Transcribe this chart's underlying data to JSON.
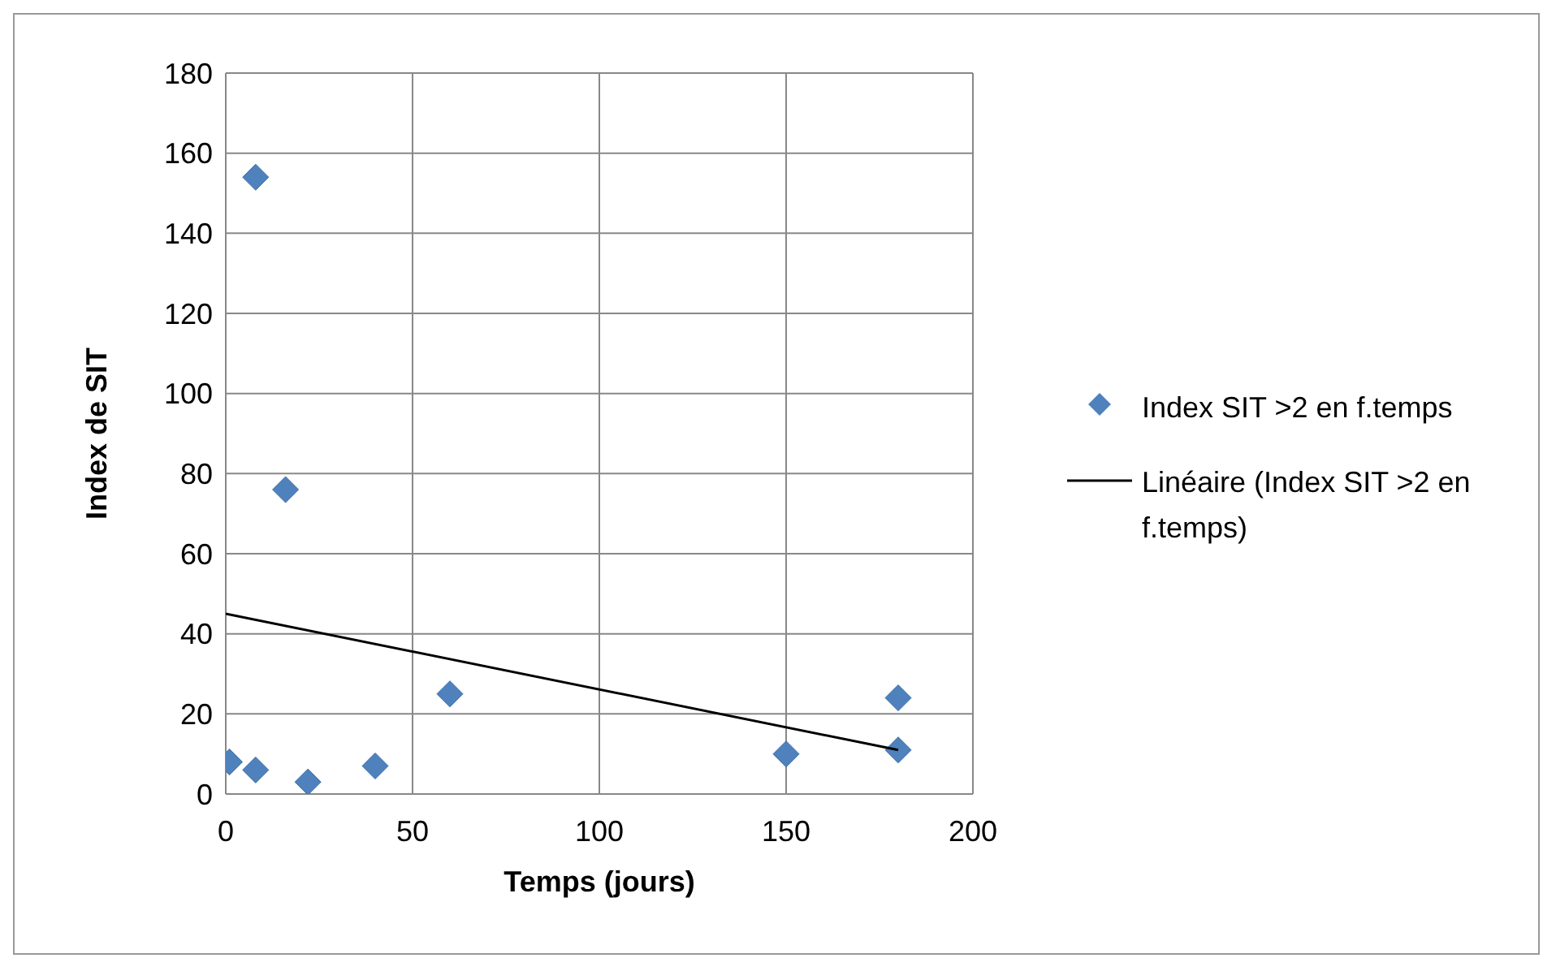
{
  "chart_data": {
    "type": "scatter",
    "xlabel": "Temps (jours)",
    "ylabel": "Index de SIT",
    "xlim": [
      0,
      200
    ],
    "xticks": [
      0,
      50,
      100,
      150,
      200
    ],
    "ylim": [
      0,
      180
    ],
    "yticks": [
      0,
      20,
      40,
      60,
      80,
      100,
      120,
      140,
      160,
      180
    ],
    "grid": true,
    "legend": "right",
    "series": [
      {
        "name": "Index SIT >2 en f.temps",
        "color": "#4f81bd",
        "marker": "diamond",
        "x": [
          1,
          8,
          8,
          16,
          22,
          40,
          60,
          150,
          180,
          180
        ],
        "values": [
          8,
          6,
          154,
          76,
          3,
          7,
          25,
          10,
          24,
          11
        ]
      },
      {
        "name": "Linéaire (Index SIT >2 en f.temps)",
        "type": "line",
        "color": "#000000",
        "marker": "none",
        "x": [
          0,
          180
        ],
        "values": [
          45,
          11
        ]
      }
    ]
  }
}
